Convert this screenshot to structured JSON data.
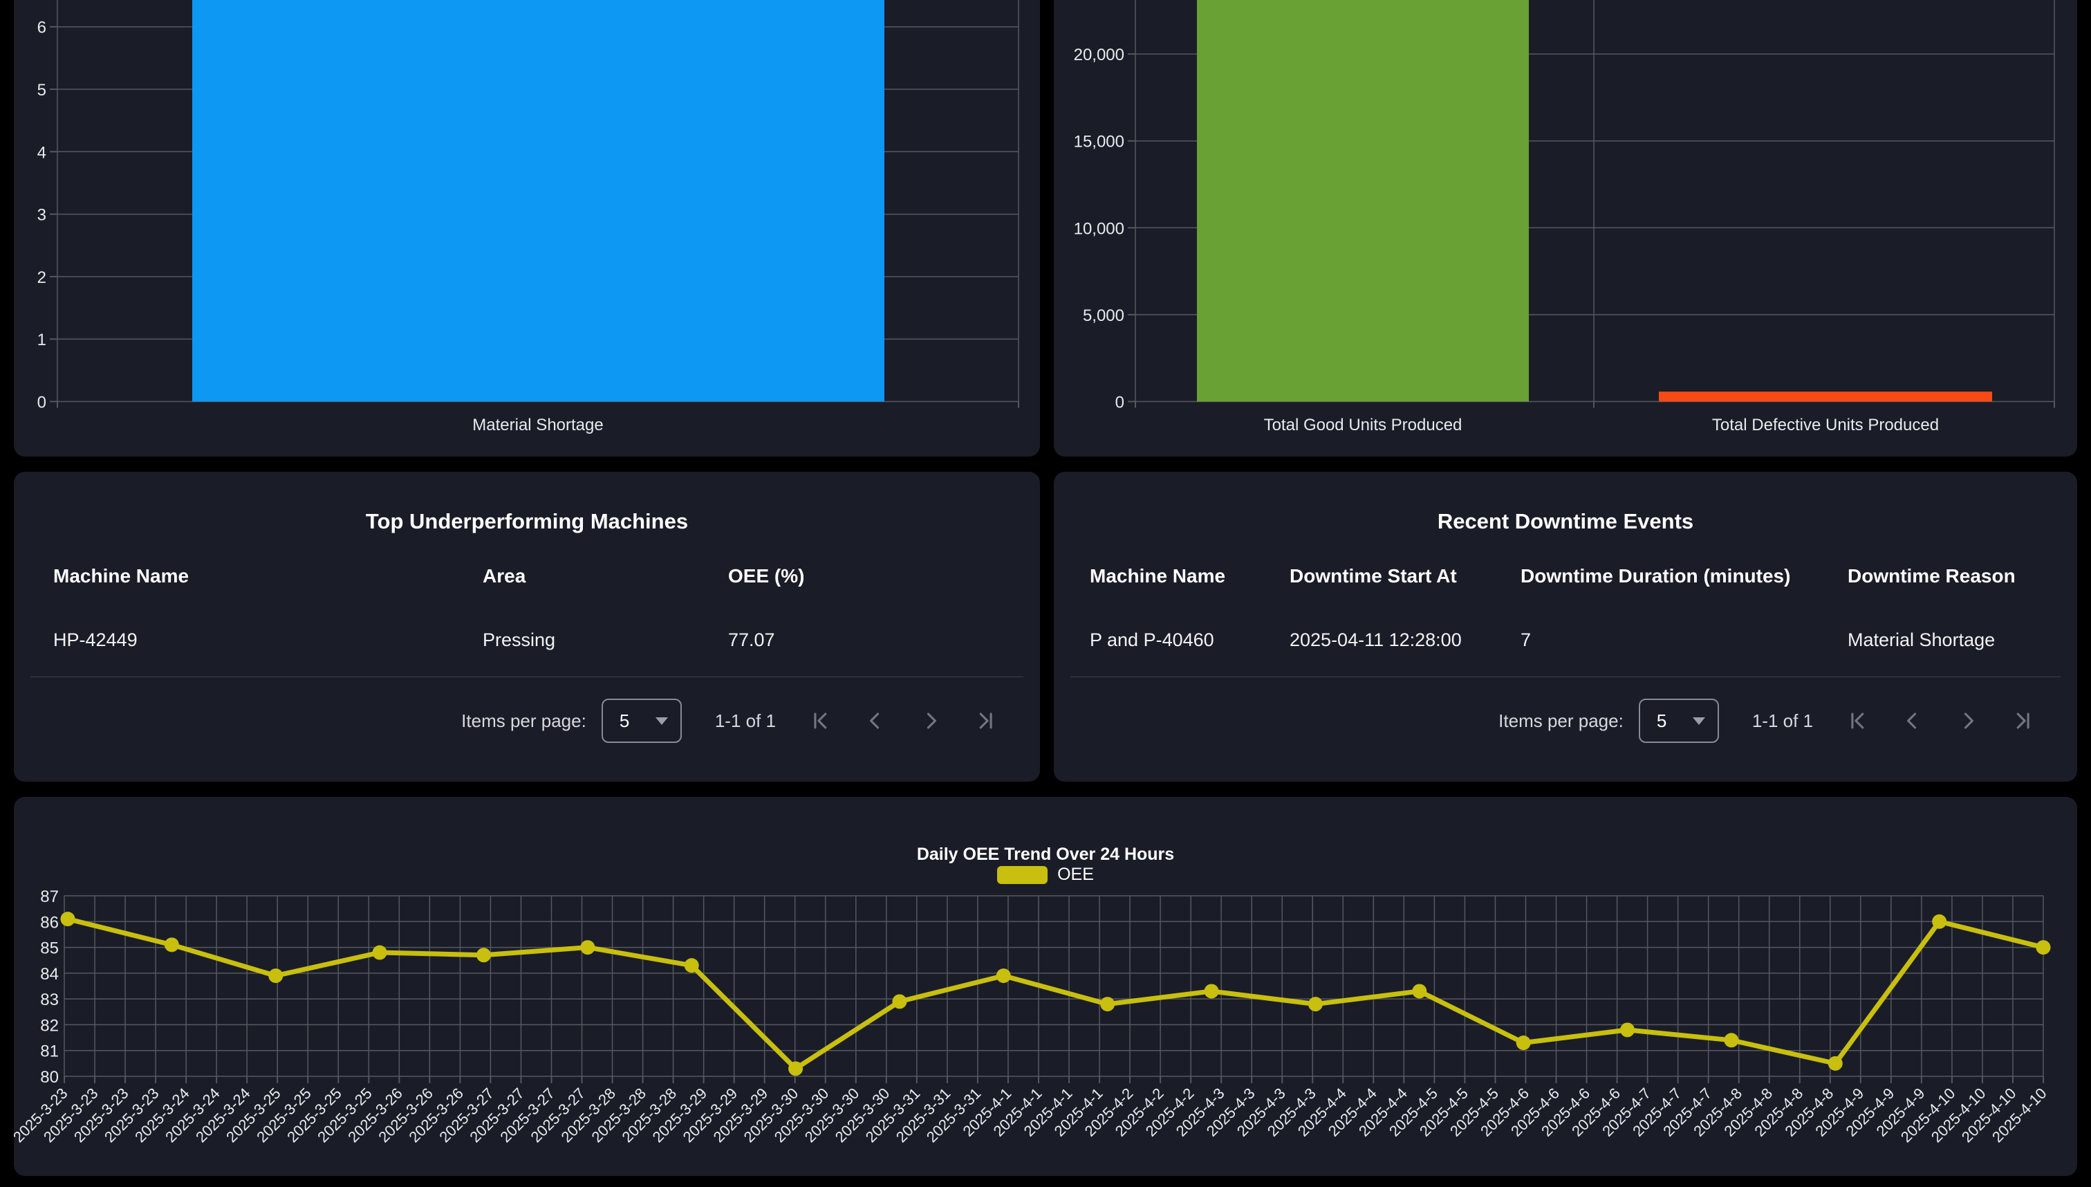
{
  "page": {
    "background": "#000000",
    "panel_background": "#1a1d28",
    "gridline_color": "#56585e"
  },
  "chart_data": [
    {
      "id": "downtime-reasons-bar",
      "type": "bar",
      "title": "",
      "categories": [
        "Material Shortage"
      ],
      "values": [
        7
      ],
      "bar_colors": [
        "#0d98f4"
      ],
      "yticks": [
        0,
        1,
        2,
        3,
        4,
        5,
        6
      ],
      "ytick_labels": [
        "0",
        "1",
        "2",
        "3",
        "4",
        "5",
        "6"
      ],
      "ylim_visible": [
        0,
        6.4
      ],
      "value_clipped_at_top": true,
      "grid": true,
      "legend_position": "none"
    },
    {
      "id": "production-units-bar",
      "type": "bar",
      "title": "",
      "categories": [
        "Total Good Units Produced",
        "Total Defective Units Produced"
      ],
      "values": [
        23200,
        570
      ],
      "bar_colors": [
        "#69a135",
        "#f84a15"
      ],
      "yticks": [
        0,
        5000,
        10000,
        15000,
        20000
      ],
      "ytick_labels": [
        "0",
        "5,000",
        "10,000",
        "15,000",
        "20,000"
      ],
      "ylim_visible": [
        0,
        23100
      ],
      "value_clipped_at_top": true,
      "grid": true,
      "legend_position": "none"
    },
    {
      "id": "daily-oee-trend",
      "type": "line",
      "title": "Daily OEE Trend Over 24 Hours",
      "legend": [
        {
          "label": "OEE",
          "color": "#c8bf0e"
        }
      ],
      "legend_position": "top",
      "line_color": "#c8bf0e",
      "ylim": [
        80,
        87
      ],
      "yticks": [
        80,
        81,
        82,
        83,
        84,
        85,
        86,
        87
      ],
      "ytick_labels": [
        "80",
        "81",
        "82",
        "83",
        "84",
        "85",
        "86",
        "87"
      ],
      "x": [
        "2025-3-23",
        "2025-3-24",
        "2025-3-25",
        "2025-3-26",
        "2025-3-27",
        "2025-3-28",
        "2025-3-29",
        "2025-3-30",
        "2025-3-31",
        "2025-4-1",
        "2025-4-2",
        "2025-4-3",
        "2025-4-4",
        "2025-4-5",
        "2025-4-6",
        "2025-4-7",
        "2025-4-8",
        "2025-4-9",
        "2025-4-10",
        "2025-4-11"
      ],
      "values": [
        86.1,
        85.1,
        83.9,
        84.8,
        84.7,
        85.0,
        84.3,
        80.3,
        82.9,
        83.9,
        82.8,
        83.3,
        82.8,
        83.3,
        81.3,
        81.8,
        81.4,
        80.5,
        86.0,
        85.0
      ],
      "xtick_labels": [
        "2025-3-23",
        "2025-3-23",
        "2025-3-23",
        "2025-3-23",
        "2025-3-24",
        "2025-3-24",
        "2025-3-24",
        "2025-3-25",
        "2025-3-25",
        "2025-3-25",
        "2025-3-25",
        "2025-3-26",
        "2025-3-26",
        "2025-3-26",
        "2025-3-27",
        "2025-3-27",
        "2025-3-27",
        "2025-3-27",
        "2025-3-28",
        "2025-3-28",
        "2025-3-28",
        "2025-3-29",
        "2025-3-29",
        "2025-3-29",
        "2025-3-30",
        "2025-3-30",
        "2025-3-30",
        "2025-3-30",
        "2025-3-31",
        "2025-3-31",
        "2025-3-31",
        "2025-4-1",
        "2025-4-1",
        "2025-4-1",
        "2025-4-1",
        "2025-4-2",
        "2025-4-2",
        "2025-4-2",
        "2025-4-3",
        "2025-4-3",
        "2025-4-3",
        "2025-4-3",
        "2025-4-4",
        "2025-4-4",
        "2025-4-4",
        "2025-4-5",
        "2025-4-5",
        "2025-4-5",
        "2025-4-6",
        "2025-4-6",
        "2025-4-6",
        "2025-4-6",
        "2025-4-7",
        "2025-4-7",
        "2025-4-7",
        "2025-4-8",
        "2025-4-8",
        "2025-4-8",
        "2025-4-8",
        "2025-4-9",
        "2025-4-9",
        "2025-4-9",
        "2025-4-10",
        "2025-4-10",
        "2025-4-10",
        "2025-4-10"
      ],
      "grid": true
    }
  ],
  "tables": {
    "underperforming": {
      "title": "Top Underperforming Machines",
      "columns": [
        "Machine Name",
        "Area",
        "OEE (%)"
      ],
      "rows": [
        [
          "HP-42449",
          "Pressing",
          "77.07"
        ]
      ],
      "paginator": {
        "items_per_page_label": "Items per page:",
        "page_size": "5",
        "range_label": "1-1 of 1"
      }
    },
    "downtime_events": {
      "title": "Recent Downtime Events",
      "columns": [
        "Machine Name",
        "Downtime Start At",
        "Downtime Duration (minutes)",
        "Downtime Reason"
      ],
      "rows": [
        [
          "P and P-40460",
          "2025-04-11 12:28:00",
          "7",
          "Material Shortage"
        ]
      ],
      "paginator": {
        "items_per_page_label": "Items per page:",
        "page_size": "5",
        "range_label": "1-1 of 1"
      }
    }
  }
}
